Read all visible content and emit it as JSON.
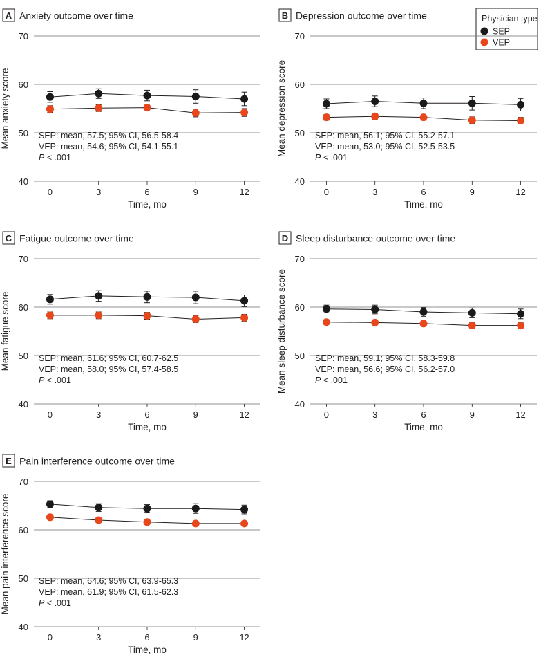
{
  "legend": {
    "title": "Physician type",
    "items": [
      {
        "label": "SEP",
        "color": "#1a1a1a"
      },
      {
        "label": "VEP",
        "color": "#e8461b"
      }
    ]
  },
  "chart_data": [
    {
      "panel": "A",
      "type": "line",
      "title": "Anxiety outcome over time",
      "xlabel": "Time, mo",
      "ylabel": "Mean anxiety score",
      "x": [
        0,
        3,
        6,
        9,
        12
      ],
      "xlim": [
        -1,
        13
      ],
      "ylim": [
        40,
        70
      ],
      "yticks": [
        40,
        50,
        60,
        70
      ],
      "grid": true,
      "series": [
        {
          "name": "SEP",
          "values": [
            57.4,
            58.1,
            57.7,
            57.5,
            57.0
          ],
          "err_low": [
            56.3,
            57.1,
            56.6,
            56.1,
            55.6
          ],
          "err_high": [
            58.5,
            59.1,
            58.8,
            58.9,
            58.4
          ]
        },
        {
          "name": "VEP",
          "values": [
            54.9,
            55.1,
            55.2,
            54.1,
            54.2
          ],
          "err_low": [
            54.2,
            54.4,
            54.5,
            53.3,
            53.4
          ],
          "err_high": [
            55.6,
            55.8,
            55.9,
            54.9,
            55.0
          ]
        }
      ],
      "annotation": {
        "line1": "SEP: mean, 57.5; 95% CI, 56.5-58.4",
        "line2": "VEP: mean, 54.6; 95% CI, 54.1-55.1",
        "p_label": "P",
        "p_value": " < .001"
      }
    },
    {
      "panel": "B",
      "type": "line",
      "title": "Depression outcome over time",
      "xlabel": "Time, mo",
      "ylabel": "Mean depression score",
      "x": [
        0,
        3,
        6,
        9,
        12
      ],
      "xlim": [
        -1,
        13
      ],
      "ylim": [
        40,
        70
      ],
      "yticks": [
        40,
        50,
        60,
        70
      ],
      "grid": true,
      "series": [
        {
          "name": "SEP",
          "values": [
            56.0,
            56.5,
            56.1,
            56.1,
            55.8
          ],
          "err_low": [
            55.0,
            55.4,
            55.0,
            54.7,
            54.5
          ],
          "err_high": [
            57.0,
            57.6,
            57.2,
            57.5,
            57.1
          ]
        },
        {
          "name": "VEP",
          "values": [
            53.2,
            53.4,
            53.2,
            52.6,
            52.5
          ],
          "err_low": [
            52.6,
            52.8,
            52.6,
            51.9,
            51.8
          ],
          "err_high": [
            53.8,
            54.0,
            53.8,
            53.3,
            53.2
          ]
        }
      ],
      "annotation": {
        "line1": "SEP: mean, 56.1; 95% CI, 55.2-57.1",
        "line2": "VEP: mean, 53.0; 95% CI, 52.5-53.5",
        "p_label": "P",
        "p_value": " < .001"
      }
    },
    {
      "panel": "C",
      "type": "line",
      "title": "Fatigue outcome over time",
      "xlabel": "Time, mo",
      "ylabel": "Mean fatigue score",
      "x": [
        0,
        3,
        6,
        9,
        12
      ],
      "xlim": [
        -1,
        13
      ],
      "ylim": [
        40,
        70
      ],
      "yticks": [
        40,
        50,
        60,
        70
      ],
      "grid": true,
      "series": [
        {
          "name": "SEP",
          "values": [
            61.6,
            62.3,
            62.1,
            62.0,
            61.3
          ],
          "err_low": [
            60.6,
            61.2,
            60.9,
            60.7,
            60.1
          ],
          "err_high": [
            62.6,
            63.4,
            63.3,
            63.3,
            62.5
          ]
        },
        {
          "name": "VEP",
          "values": [
            58.3,
            58.3,
            58.2,
            57.5,
            57.8
          ],
          "err_low": [
            57.6,
            57.6,
            57.5,
            56.8,
            57.1
          ],
          "err_high": [
            59.0,
            59.0,
            58.9,
            58.2,
            58.5
          ]
        }
      ],
      "annotation": {
        "line1": "SEP: mean, 61.6; 95% CI, 60.7-62.5",
        "line2": "VEP: mean, 58.0; 95% CI, 57.4-58.5",
        "p_label": "P",
        "p_value": " < .001"
      }
    },
    {
      "panel": "D",
      "type": "line",
      "title": "Sleep disturbance outcome over time",
      "xlabel": "Time, mo",
      "ylabel": "Mean sleep disturbance score",
      "x": [
        0,
        3,
        6,
        9,
        12
      ],
      "xlim": [
        -1,
        13
      ],
      "ylim": [
        40,
        70
      ],
      "yticks": [
        40,
        50,
        60,
        70
      ],
      "grid": true,
      "series": [
        {
          "name": "SEP",
          "values": [
            59.6,
            59.5,
            59.0,
            58.8,
            58.6
          ],
          "err_low": [
            58.8,
            58.6,
            58.1,
            57.8,
            57.6
          ],
          "err_high": [
            60.4,
            60.4,
            59.9,
            59.8,
            59.6
          ]
        },
        {
          "name": "VEP",
          "values": [
            56.9,
            56.8,
            56.6,
            56.2,
            56.2
          ],
          "err_low": [
            56.4,
            56.3,
            56.1,
            55.6,
            55.6
          ],
          "err_high": [
            57.4,
            57.3,
            57.1,
            56.8,
            56.8
          ]
        }
      ],
      "annotation": {
        "line1": "SEP: mean, 59.1; 95% CI, 58.3-59.8",
        "line2": "VEP: mean, 56.6; 95% CI, 56.2-57.0",
        "p_label": "P",
        "p_value": " < .001"
      }
    },
    {
      "panel": "E",
      "type": "line",
      "title": "Pain interference outcome over time",
      "xlabel": "Time, mo",
      "ylabel": "Mean pain interference score",
      "x": [
        0,
        3,
        6,
        9,
        12
      ],
      "xlim": [
        -1,
        13
      ],
      "ylim": [
        40,
        70
      ],
      "yticks": [
        40,
        50,
        60,
        70
      ],
      "grid": true,
      "series": [
        {
          "name": "SEP",
          "values": [
            65.3,
            64.6,
            64.4,
            64.4,
            64.2
          ],
          "err_low": [
            64.6,
            63.8,
            63.6,
            63.4,
            63.3
          ],
          "err_high": [
            66.0,
            65.4,
            65.2,
            65.4,
            65.1
          ]
        },
        {
          "name": "VEP",
          "values": [
            62.6,
            62.0,
            61.6,
            61.3,
            61.3
          ],
          "err_low": [
            62.1,
            61.5,
            61.1,
            60.8,
            60.8
          ],
          "err_high": [
            63.1,
            62.5,
            62.1,
            61.8,
            61.8
          ]
        }
      ],
      "annotation": {
        "line1": "SEP: mean, 64.6; 95% CI, 63.9-65.3",
        "line2": "VEP: mean, 61.9; 95% CI, 61.5-62.3",
        "p_label": "P",
        "p_value": " < .001"
      }
    }
  ]
}
